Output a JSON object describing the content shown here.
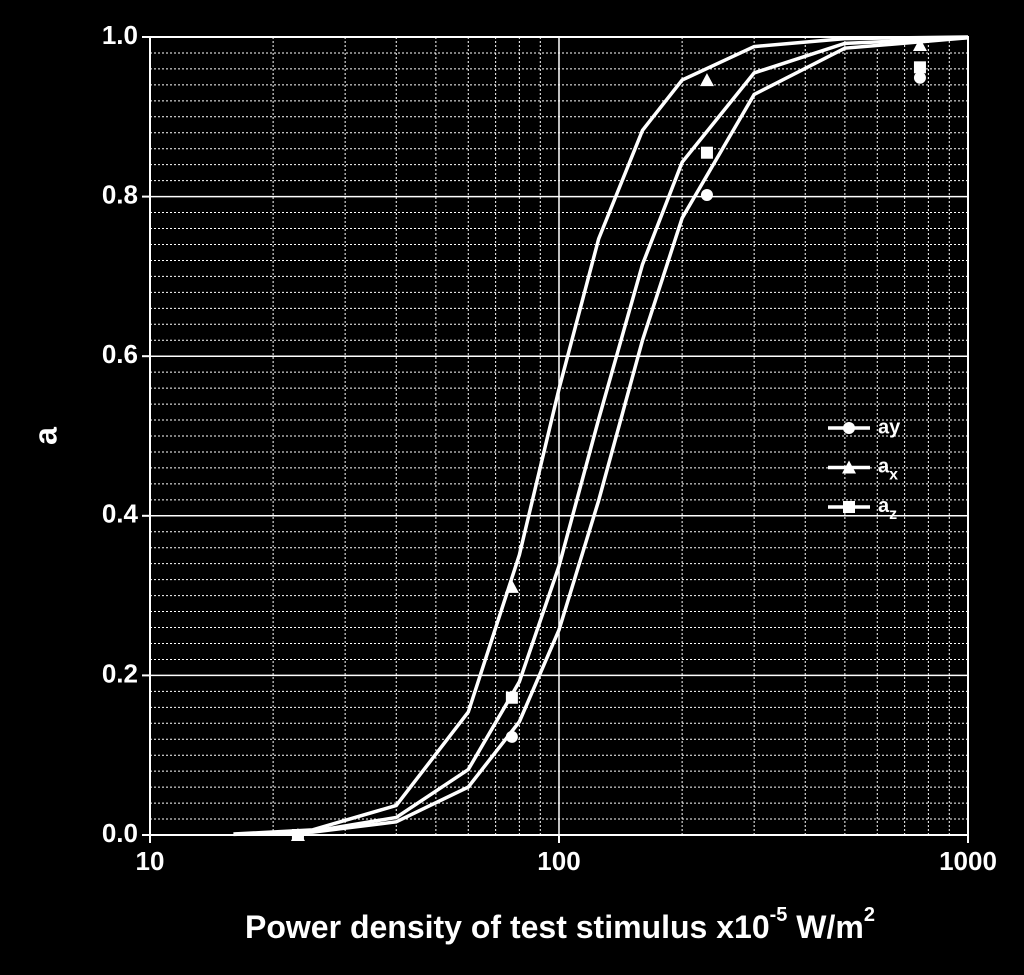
{
  "chart_data": {
    "type": "line",
    "ylabel": "a",
    "xlabel": [
      {
        "text": "Power density of test stimulus x10"
      },
      {
        "text": "-5",
        "sup": true
      },
      {
        "text": " W/m"
      },
      {
        "text": "2",
        "sup": true
      }
    ],
    "log_x": true,
    "grid": true,
    "xlim": [
      10,
      1000
    ],
    "xticks": [
      10,
      100,
      1000
    ],
    "ylim": [
      0,
      1
    ],
    "yticks": [
      {
        "value": 0,
        "label": "0.0"
      },
      0.2,
      0.4,
      0.6,
      0.8,
      {
        "value": 1,
        "label": "1.0"
      }
    ],
    "x": [
      23,
      76.7,
      230,
      763
    ],
    "fit_x": [
      16,
      25,
      40,
      60,
      80,
      100,
      125,
      160,
      200,
      300,
      500,
      1000
    ],
    "series": [
      {
        "name": "ay",
        "marker": "circle",
        "color": "#ffffff",
        "subscript": false,
        "values": [
          0,
          0.123,
          0.802,
          0.949
        ],
        "fit_values": [
          0.0008,
          0.0036,
          0.0165,
          0.06,
          0.142,
          0.257,
          0.419,
          0.62,
          0.773,
          0.928,
          0.986,
          0.999
        ]
      },
      {
        "name": "ax",
        "marker": "triangle",
        "color": "#ffffff",
        "subscript": true,
        "values": [
          0,
          0.311,
          0.946,
          0.99
        ],
        "fit_values": [
          0.0012,
          0.0065,
          0.037,
          0.154,
          0.351,
          0.559,
          0.747,
          0.883,
          0.946,
          0.988,
          0.998,
          1.0
        ]
      },
      {
        "name": "az",
        "marker": "square",
        "color": "#ffffff",
        "subscript": true,
        "values": [
          0,
          0.172,
          0.855,
          0.962
        ],
        "fit_values": [
          0.001,
          0.0045,
          0.022,
          0.082,
          0.192,
          0.337,
          0.521,
          0.715,
          0.843,
          0.955,
          0.992,
          0.999
        ]
      }
    ]
  }
}
